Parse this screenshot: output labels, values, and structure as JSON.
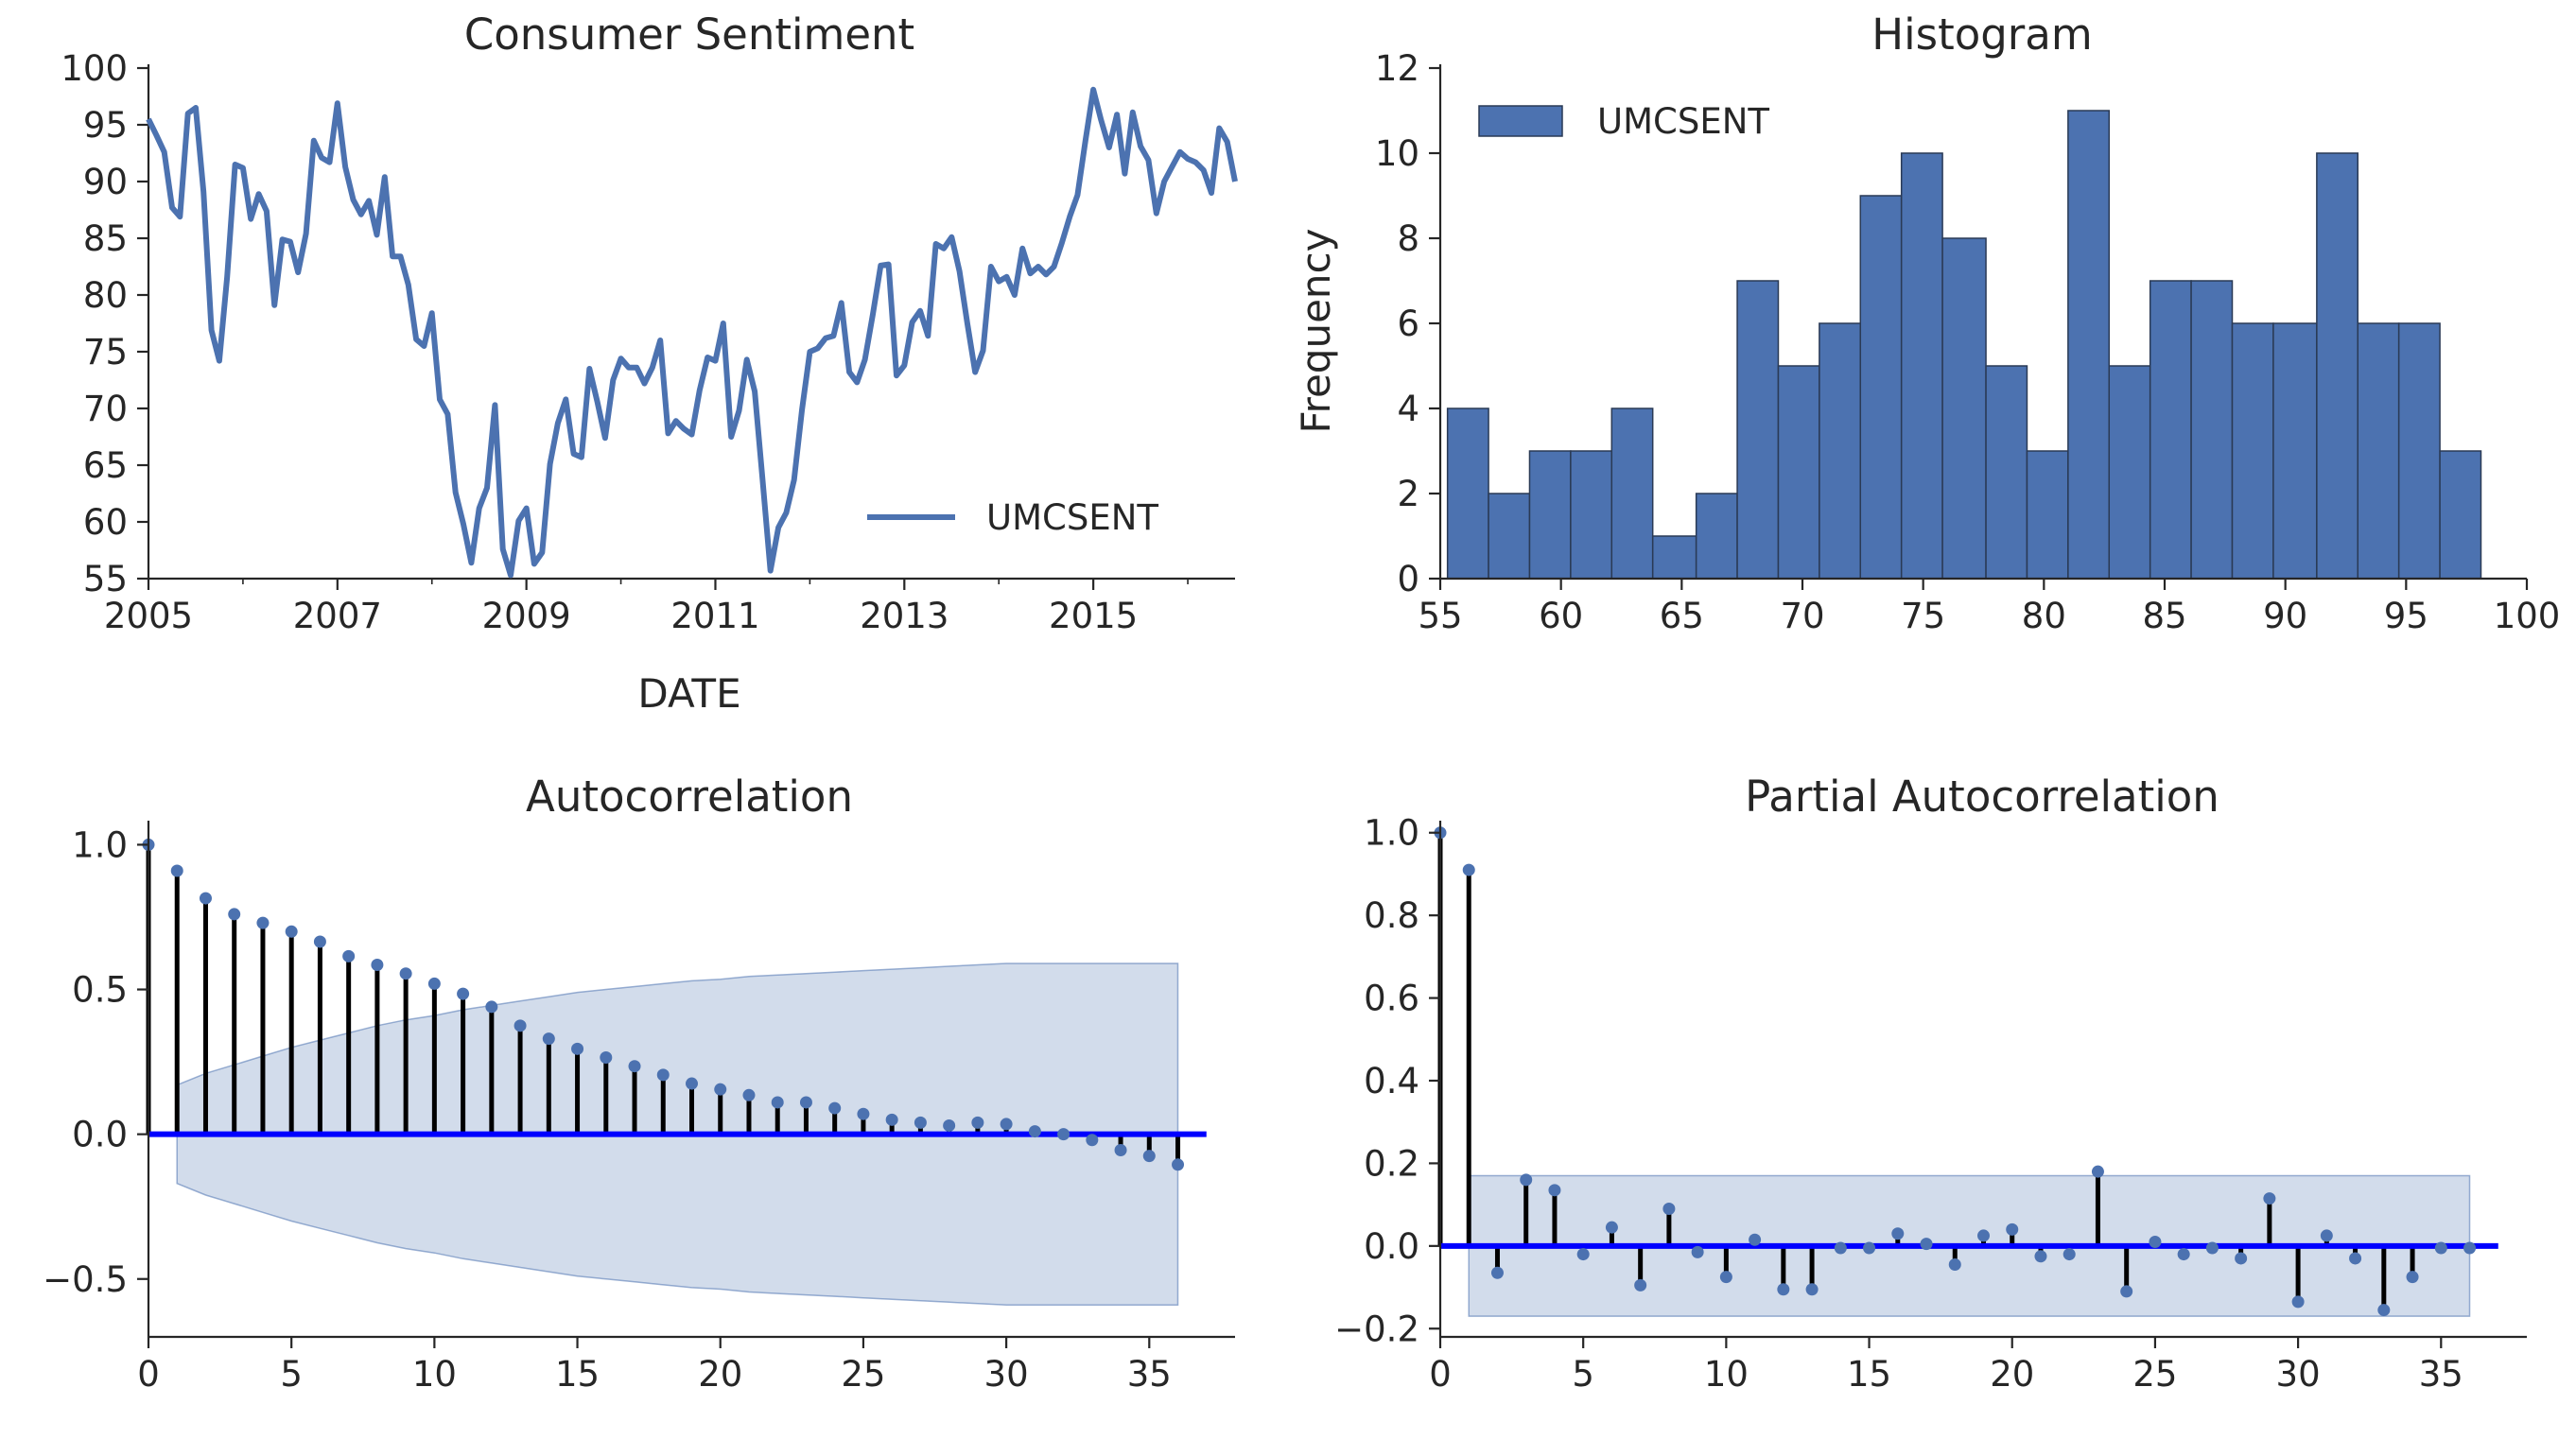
{
  "chart_data": [
    {
      "type": "line",
      "title": "Consumer Sentiment",
      "xlabel": "DATE",
      "ylabel": "",
      "xlim": [
        2005.0,
        2016.5
      ],
      "ylim": [
        55,
        100
      ],
      "xticks": [
        2005,
        2007,
        2009,
        2011,
        2013,
        2015
      ],
      "yticks": [
        55,
        60,
        65,
        70,
        75,
        80,
        85,
        90,
        95,
        100
      ],
      "grid": false,
      "legend": {
        "position": "lower-right",
        "entries": [
          "UMCSENT"
        ]
      },
      "colors": {
        "series": "#4c72b0"
      },
      "series": [
        {
          "name": "UMCSENT",
          "x": [
            2005.0,
            2005.083,
            2005.167,
            2005.25,
            2005.333,
            2005.417,
            2005.5,
            2005.583,
            2005.667,
            2005.75,
            2005.833,
            2005.917,
            2006.0,
            2006.083,
            2006.167,
            2006.25,
            2006.333,
            2006.417,
            2006.5,
            2006.583,
            2006.667,
            2006.75,
            2006.833,
            2006.917,
            2007.0,
            2007.083,
            2007.167,
            2007.25,
            2007.333,
            2007.417,
            2007.5,
            2007.583,
            2007.667,
            2007.75,
            2007.833,
            2007.917,
            2008.0,
            2008.083,
            2008.167,
            2008.25,
            2008.333,
            2008.417,
            2008.5,
            2008.583,
            2008.667,
            2008.75,
            2008.833,
            2008.917,
            2009.0,
            2009.083,
            2009.167,
            2009.25,
            2009.333,
            2009.417,
            2009.5,
            2009.583,
            2009.667,
            2009.75,
            2009.833,
            2009.917,
            2010.0,
            2010.083,
            2010.167,
            2010.25,
            2010.333,
            2010.417,
            2010.5,
            2010.583,
            2010.667,
            2010.75,
            2010.833,
            2010.917,
            2011.0,
            2011.083,
            2011.167,
            2011.25,
            2011.333,
            2011.417,
            2011.5,
            2011.583,
            2011.667,
            2011.75,
            2011.833,
            2011.917,
            2012.0,
            2012.083,
            2012.167,
            2012.25,
            2012.333,
            2012.417,
            2012.5,
            2012.583,
            2012.667,
            2012.75,
            2012.833,
            2012.917,
            2013.0,
            2013.083,
            2013.167,
            2013.25,
            2013.333,
            2013.417,
            2013.5,
            2013.583,
            2013.667,
            2013.75,
            2013.833,
            2013.917,
            2014.0,
            2014.083,
            2014.167,
            2014.25,
            2014.333,
            2014.417,
            2014.5,
            2014.583,
            2014.667,
            2014.75,
            2014.833,
            2014.917,
            2015.0,
            2015.083,
            2015.167,
            2015.25,
            2015.333,
            2015.417,
            2015.5,
            2015.583,
            2015.667,
            2015.75,
            2015.833,
            2015.917,
            2016.0,
            2016.083,
            2016.167,
            2016.25,
            2016.333,
            2016.417,
            2016.5
          ],
          "y": [
            95.5,
            94.1,
            92.6,
            87.7,
            86.9,
            96.0,
            96.5,
            89.1,
            76.9,
            74.2,
            81.6,
            91.5,
            91.2,
            86.7,
            88.9,
            87.4,
            79.1,
            84.9,
            84.7,
            82.0,
            85.4,
            93.6,
            92.1,
            91.7,
            96.9,
            91.3,
            88.4,
            87.1,
            88.3,
            85.3,
            90.4,
            83.4,
            83.4,
            80.9,
            76.1,
            75.5,
            78.4,
            70.8,
            69.5,
            62.6,
            59.8,
            56.4,
            61.2,
            63.0,
            70.3,
            57.6,
            55.3,
            60.1,
            61.2,
            56.3,
            57.3,
            65.1,
            68.7,
            70.8,
            66.0,
            65.7,
            73.5,
            70.6,
            67.4,
            72.5,
            74.4,
            73.6,
            73.6,
            72.2,
            73.6,
            76.0,
            67.8,
            68.9,
            68.2,
            67.7,
            71.6,
            74.5,
            74.2,
            77.5,
            67.5,
            69.8,
            74.3,
            71.5,
            63.7,
            55.7,
            59.5,
            60.8,
            63.7,
            69.9,
            75.0,
            75.3,
            76.2,
            76.4,
            79.3,
            73.2,
            72.3,
            74.3,
            78.3,
            82.6,
            82.7,
            72.9,
            73.8,
            77.6,
            78.6,
            76.4,
            84.5,
            84.1,
            85.1,
            82.1,
            77.5,
            73.2,
            75.1,
            82.5,
            81.2,
            81.6,
            80.0,
            84.1,
            81.9,
            82.5,
            81.8,
            82.5,
            84.6,
            86.9,
            88.8,
            93.6,
            98.1,
            95.4,
            93.0,
            95.9,
            90.7,
            96.1,
            93.1,
            91.9,
            87.2,
            90.0,
            91.3,
            92.6,
            92.0,
            91.7,
            91.0,
            89.0,
            94.7,
            93.5,
            90.0
          ]
        }
      ]
    },
    {
      "type": "bar",
      "title": "Histogram",
      "xlabel": "",
      "ylabel": "Frequency",
      "xlim": [
        55,
        100
      ],
      "ylim": [
        0,
        12
      ],
      "xticks": [
        55,
        60,
        65,
        70,
        75,
        80,
        85,
        90,
        95,
        100
      ],
      "yticks": [
        0,
        2,
        4,
        6,
        8,
        10,
        12
      ],
      "grid": false,
      "legend": {
        "position": "top-left",
        "entries": [
          "UMCSENT"
        ]
      },
      "colors": {
        "bars": "#4c72b0",
        "edges": "#2a3a55"
      },
      "bin_edges": [
        55.3,
        57.0,
        58.7,
        60.4,
        62.1,
        63.8,
        65.6,
        67.3,
        69.0,
        70.7,
        72.4,
        74.1,
        75.8,
        77.6,
        79.3,
        81.0,
        82.7,
        84.4,
        86.1,
        87.8,
        89.5,
        91.3,
        93.0,
        94.7,
        96.4,
        98.1
      ],
      "series": [
        {
          "name": "UMCSENT",
          "values": [
            4,
            2,
            3,
            3,
            4,
            1,
            2,
            7,
            5,
            6,
            9,
            10,
            8,
            5,
            3,
            11,
            5,
            7,
            7,
            6,
            6,
            10,
            6,
            6,
            3
          ]
        }
      ]
    },
    {
      "type": "stem",
      "title": "Autocorrelation",
      "xlabel": "",
      "ylabel": "",
      "xlim": [
        0,
        38
      ],
      "ylim": [
        -0.7,
        1.07
      ],
      "xticks": [
        0,
        5,
        10,
        15,
        20,
        25,
        30,
        35
      ],
      "yticks": [
        -0.5,
        0.0,
        0.5,
        1.0
      ],
      "ytick_labels": [
        "−0.5",
        "0.0",
        "0.5",
        "1.0"
      ],
      "grid": false,
      "colors": {
        "points": "#4c72b0",
        "stems": "#000000",
        "zero_line": "#0000ff",
        "band": "#4c72b0"
      },
      "lags": [
        0,
        1,
        2,
        3,
        4,
        5,
        6,
        7,
        8,
        9,
        10,
        11,
        12,
        13,
        14,
        15,
        16,
        17,
        18,
        19,
        20,
        21,
        22,
        23,
        24,
        25,
        26,
        27,
        28,
        29,
        30,
        31,
        32,
        33,
        34,
        35,
        36
      ],
      "values": [
        1.0,
        0.91,
        0.815,
        0.76,
        0.73,
        0.7,
        0.665,
        0.615,
        0.585,
        0.555,
        0.52,
        0.485,
        0.44,
        0.375,
        0.33,
        0.295,
        0.265,
        0.235,
        0.205,
        0.175,
        0.155,
        0.135,
        0.11,
        0.11,
        0.09,
        0.07,
        0.05,
        0.04,
        0.03,
        0.04,
        0.035,
        0.01,
        0.0,
        -0.02,
        -0.055,
        -0.075,
        -0.105
      ],
      "confint": [
        0.17,
        0.21,
        0.24,
        0.27,
        0.3,
        0.325,
        0.35,
        0.375,
        0.395,
        0.41,
        0.43,
        0.445,
        0.46,
        0.475,
        0.49,
        0.5,
        0.51,
        0.52,
        0.53,
        0.535,
        0.545,
        0.55,
        0.555,
        0.56,
        0.565,
        0.57,
        0.575,
        0.58,
        0.585,
        0.59,
        0.59,
        0.59,
        0.59,
        0.59,
        0.59,
        0.59
      ]
    },
    {
      "type": "stem",
      "title": "Partial Autocorrelation",
      "xlabel": "",
      "ylabel": "",
      "xlim": [
        0,
        38
      ],
      "ylim": [
        -0.22,
        1.02
      ],
      "xticks": [
        0,
        5,
        10,
        15,
        20,
        25,
        30,
        35
      ],
      "yticks": [
        -0.2,
        0.0,
        0.2,
        0.4,
        0.6,
        0.8,
        1.0
      ],
      "ytick_labels": [
        "−0.2",
        "0.0",
        "0.2",
        "0.4",
        "0.6",
        "0.8",
        "1.0"
      ],
      "grid": false,
      "colors": {
        "points": "#4c72b0",
        "stems": "#000000",
        "zero_line": "#0000ff",
        "band": "#4c72b0"
      },
      "lags": [
        0,
        1,
        2,
        3,
        4,
        5,
        6,
        7,
        8,
        9,
        10,
        11,
        12,
        13,
        14,
        15,
        16,
        17,
        18,
        19,
        20,
        21,
        22,
        23,
        24,
        25,
        26,
        27,
        28,
        29,
        30,
        31,
        32,
        33,
        34,
        35,
        36
      ],
      "values": [
        1.0,
        0.91,
        -0.065,
        0.16,
        0.135,
        -0.02,
        0.045,
        -0.095,
        0.09,
        -0.015,
        -0.075,
        0.015,
        -0.105,
        -0.105,
        -0.005,
        -0.005,
        0.03,
        0.005,
        -0.045,
        0.025,
        0.04,
        -0.025,
        -0.02,
        0.18,
        -0.11,
        0.01,
        -0.02,
        -0.005,
        -0.03,
        0.115,
        -0.135,
        0.025,
        -0.03,
        -0.155,
        -0.075,
        -0.005,
        -0.005
      ],
      "confint": 0.17
    }
  ]
}
